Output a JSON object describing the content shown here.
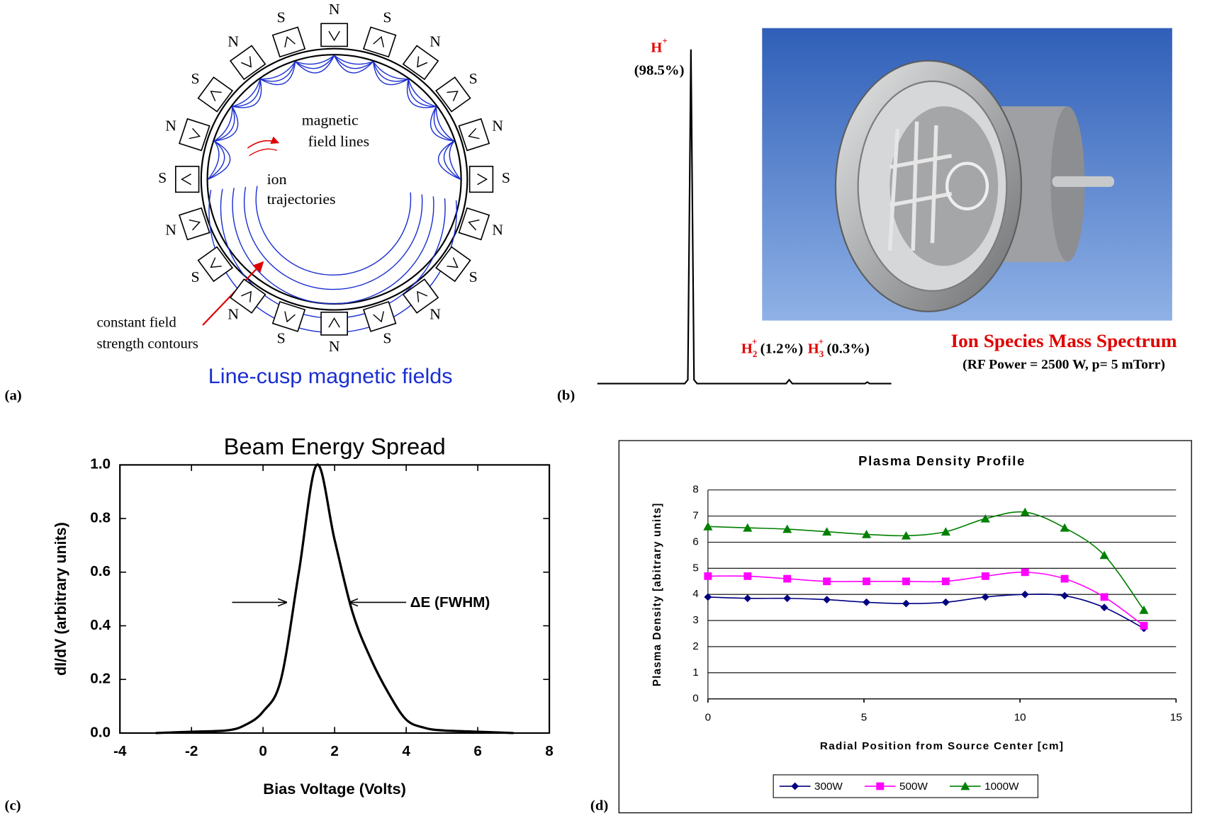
{
  "diagram": {
    "label": "(a)",
    "pole_labels": [
      "N",
      "S",
      "N",
      "S",
      "N",
      "S",
      "N",
      "S",
      "N",
      "S",
      "N",
      "S",
      "N",
      "S",
      "N",
      "S",
      "N",
      "S",
      "N",
      "S"
    ],
    "field_lines_label": [
      "magnetic",
      "field lines"
    ],
    "ion_label": [
      "ion",
      "trajectories"
    ],
    "contour_label": [
      "constant field",
      "strength contours"
    ],
    "caption": "Line-cusp magnetic fields"
  },
  "spectrum": {
    "label": "(b)",
    "peaks": [
      {
        "base": "H",
        "charge": "+",
        "share": "(98.5%)"
      },
      {
        "base": "H",
        "subscript": "2",
        "charge": "+",
        "share": "(1.2%)"
      },
      {
        "base": "H",
        "subscript": "3",
        "charge": "+",
        "share": "(0.3%)"
      }
    ],
    "title": "Ion Species Mass Spectrum",
    "conditions": "(RF Power = 2500 W, p= 5 mTorr)"
  },
  "chart_data": [
    {
      "type": "line",
      "label": "(c)",
      "title": "Beam Energy Spread",
      "x_label": "Bias Voltage (Volts)",
      "y_label": "dI/dV (arbitrary units)",
      "annotation": "ΔE (FWHM)",
      "x": [
        -3,
        -2,
        -1,
        -0.5,
        0,
        0.5,
        1,
        1.5,
        2,
        2.5,
        3,
        3.5,
        4,
        4.5,
        5,
        6,
        7
      ],
      "series": [
        {
          "color": "#000000",
          "values": [
            0,
            0.005,
            0.01,
            0.03,
            0.08,
            0.2,
            0.6,
            1.0,
            0.72,
            0.45,
            0.28,
            0.15,
            0.05,
            0.02,
            0.01,
            0.005,
            0
          ]
        }
      ],
      "xlim": [
        -4,
        8
      ],
      "xticks": [
        -4,
        -2,
        0,
        2,
        4,
        6,
        8
      ],
      "ylim": [
        0,
        1
      ],
      "yticks": [
        {
          "value": 0,
          "label": "0.0"
        },
        0.2,
        0.4,
        0.6,
        0.8,
        {
          "value": 1,
          "label": "1.0"
        }
      ],
      "grid": false
    },
    {
      "type": "line",
      "label": "(d)",
      "title": "Plasma Density Profile",
      "x_label": "Radial Position from Source Center [cm]",
      "y_label": "Plasma Density [abitrary units]",
      "x": [
        0,
        1.27,
        2.54,
        3.81,
        5.08,
        6.35,
        7.62,
        8.89,
        10.16,
        11.43,
        12.7,
        13.97
      ],
      "series": [
        {
          "name": "300W",
          "color": "#000080",
          "marker": "diamond",
          "values": [
            3.9,
            3.85,
            3.85,
            3.8,
            3.7,
            3.65,
            3.7,
            3.9,
            4.0,
            3.95,
            3.5,
            2.7
          ]
        },
        {
          "name": "500W",
          "color": "#ff00ff",
          "marker": "square",
          "values": [
            4.7,
            4.7,
            4.6,
            4.5,
            4.5,
            4.5,
            4.5,
            4.7,
            4.85,
            4.6,
            3.9,
            2.8
          ]
        },
        {
          "name": "1000W",
          "color": "#008000",
          "marker": "triangle",
          "values": [
            6.6,
            6.55,
            6.5,
            6.4,
            6.3,
            6.25,
            6.4,
            6.9,
            7.15,
            6.55,
            5.5,
            3.4
          ]
        }
      ],
      "xlim": [
        0,
        15
      ],
      "xticks": [
        0,
        5,
        10,
        15
      ],
      "ylim": [
        0,
        8
      ],
      "yticks": [
        0,
        1,
        2,
        3,
        4,
        5,
        6,
        7,
        8
      ],
      "grid": true,
      "legend": "bottom"
    }
  ]
}
